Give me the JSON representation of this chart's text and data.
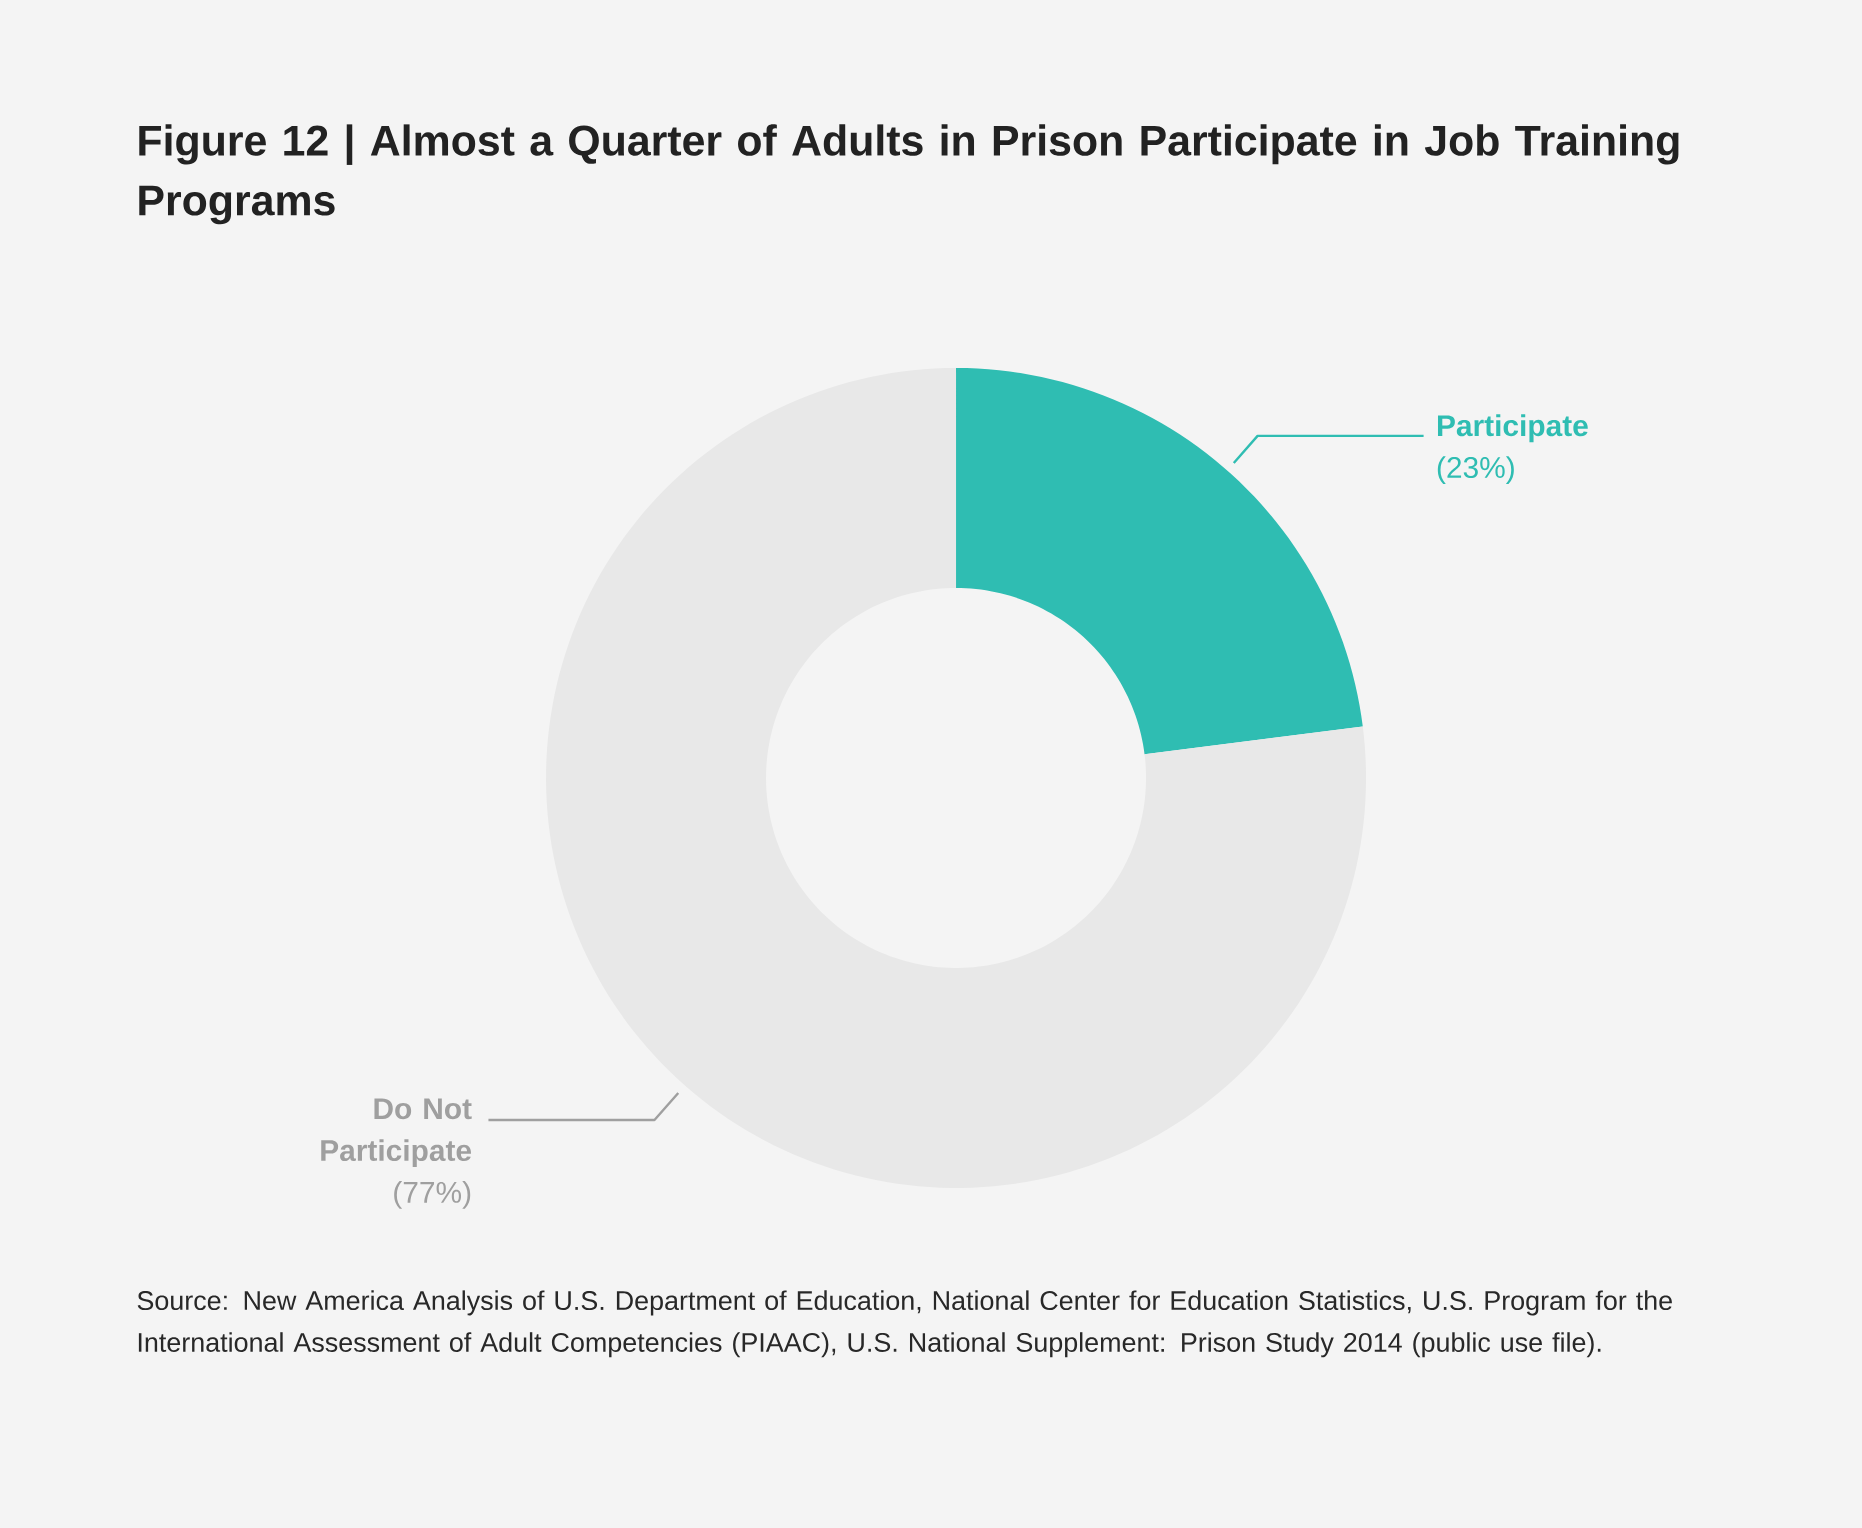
{
  "chart_data": {
    "type": "donut",
    "title": "Figure 12 | Almost a Quarter of Adults in Prison Participate in Job Training Programs",
    "categories": [
      "Participate",
      "Do Not Participate"
    ],
    "values": [
      23,
      77
    ],
    "colors": [
      "#2fbdb2",
      "#e8e8e8"
    ],
    "value_labels": [
      "(23%)",
      "(77%)"
    ],
    "annotations": [
      "Source: New America Analysis of U.S. Department of Education, National Center for Education Statistics, U.S. Program for the International Assessment of Adult Competencies (PIAAC), U.S. National Supplement: Prison Study 2014 (public use file)."
    ]
  }
}
